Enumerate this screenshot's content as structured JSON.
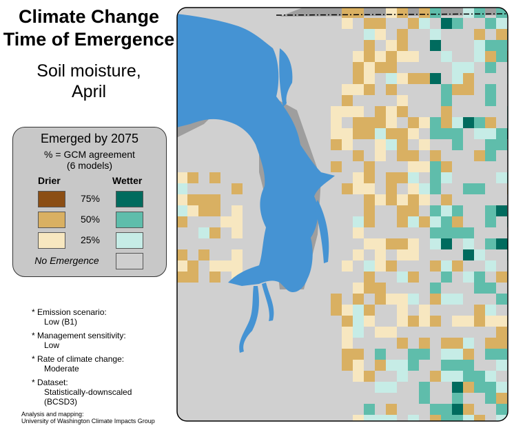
{
  "title": [
    "Climate Change",
    "Time of Emergence"
  ],
  "subtitle": [
    "Soil moisture,",
    "April"
  ],
  "legend": {
    "heading": "Emerged by 2075",
    "sub": [
      "% = GCM agreement",
      "(6 models)"
    ],
    "drier_label": "Drier",
    "wetter_label": "Wetter",
    "levels": [
      {
        "pct": "75%",
        "drier_color": "#8b4e14",
        "wetter_color": "#006b5e"
      },
      {
        "pct": "50%",
        "drier_color": "#d9b062",
        "wetter_color": "#5fbdab"
      },
      {
        "pct": "25%",
        "drier_color": "#f7e7c0",
        "wetter_color": "#c6ece6"
      }
    ],
    "no_emergence_label": "No Emergence",
    "no_emergence_color": "#cfcfcf"
  },
  "notes": [
    {
      "label": "* Emission scenario:",
      "value": [
        "Low (B1)"
      ]
    },
    {
      "label": "* Management sensitivity:",
      "value": [
        "Low"
      ]
    },
    {
      "label": "* Rate of climate change:",
      "value": [
        "Moderate"
      ]
    },
    {
      "label": "* Dataset:",
      "value": [
        "Statistically-downscaled",
        "(BCSD3)"
      ]
    }
  ],
  "credit": [
    "Analysis and mapping:",
    "University of Washington Climate Impacts Group"
  ],
  "map_colors": {
    "background": "#d0d0d0",
    "water": "#4593d3",
    "outside": "#9e9e9e",
    "border": "#000000"
  }
}
